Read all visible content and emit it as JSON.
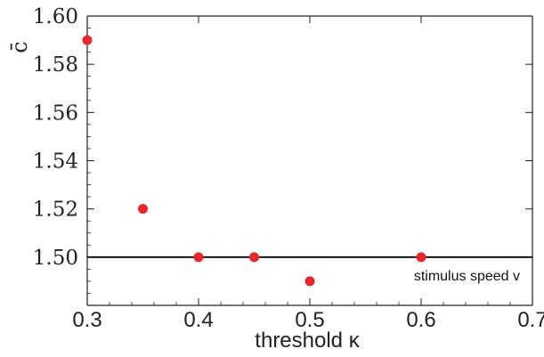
{
  "chart_data": {
    "type": "scatter",
    "xlabel": "threshold κ",
    "ylabel": "c̄",
    "xlim": [
      0.3,
      0.7
    ],
    "ylim": [
      1.48,
      1.6
    ],
    "x_ticks": [
      "0.3",
      "0.4",
      "0.5",
      "0.6",
      "0.7"
    ],
    "y_ticks": [
      "1.50",
      "1.52",
      "1.54",
      "1.56",
      "1.58",
      "1.60"
    ],
    "grid": false,
    "marker_color": "#e8262b",
    "series": [
      {
        "x": [
          0.3,
          0.35,
          0.4,
          0.45,
          0.5,
          0.6
        ],
        "y": [
          1.59,
          1.52,
          1.5,
          1.5,
          1.49,
          1.5
        ]
      }
    ],
    "reference_line": {
      "y": 1.5,
      "label": "stimulus speed v",
      "color": "#000000"
    }
  }
}
